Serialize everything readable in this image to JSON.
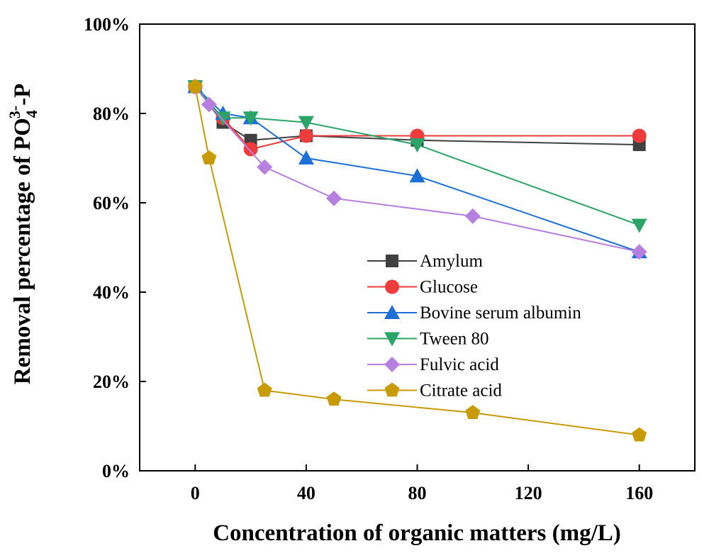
{
  "chart_data": {
    "type": "line",
    "xlabel": "Concentration of organic matters (mg/L)",
    "ylabel": {
      "prefix": "Removal percentage of PO",
      "subscript": "4",
      "superscript": "3-",
      "suffix": "-P"
    },
    "xlim": [
      -20,
      180
    ],
    "ylim": [
      0,
      100
    ],
    "x_ticks": [
      0,
      40,
      80,
      120,
      160
    ],
    "y_ticks": [
      0,
      20,
      40,
      60,
      80,
      100
    ],
    "y_tick_suffix": "%",
    "grid": false,
    "legend_position": "center-right",
    "series": [
      {
        "name": "Amylum",
        "color": "#404040",
        "marker": "square",
        "x": [
          0,
          10,
          20,
          40,
          80,
          160
        ],
        "y": [
          86,
          78,
          74,
          75,
          74,
          73
        ]
      },
      {
        "name": "Glucose",
        "color": "#ee3b3b",
        "marker": "circle",
        "x": [
          0,
          10,
          20,
          40,
          80,
          160
        ],
        "y": [
          86,
          79,
          72,
          75,
          75,
          75
        ]
      },
      {
        "name": "Bovine serum albumin",
        "color": "#1c6fd6",
        "marker": "triangle-up",
        "x": [
          0,
          10,
          20,
          40,
          80,
          160
        ],
        "y": [
          86,
          80,
          79,
          70,
          66,
          49
        ]
      },
      {
        "name": "Tween 80",
        "color": "#2aa566",
        "marker": "triangle-down",
        "x": [
          0,
          10,
          20,
          40,
          80,
          160
        ],
        "y": [
          86,
          79,
          79,
          78,
          73,
          55
        ]
      },
      {
        "name": "Fulvic acid",
        "color": "#b77fe0",
        "marker": "diamond",
        "x": [
          0,
          5,
          25,
          50,
          100,
          160
        ],
        "y": [
          86,
          82,
          68,
          61,
          57,
          49
        ]
      },
      {
        "name": "Citrate acid",
        "color": "#c89b05",
        "marker": "pentagon",
        "x": [
          0,
          5,
          25,
          50,
          100,
          160
        ],
        "y": [
          86,
          70,
          18,
          16,
          13,
          8
        ]
      }
    ]
  }
}
